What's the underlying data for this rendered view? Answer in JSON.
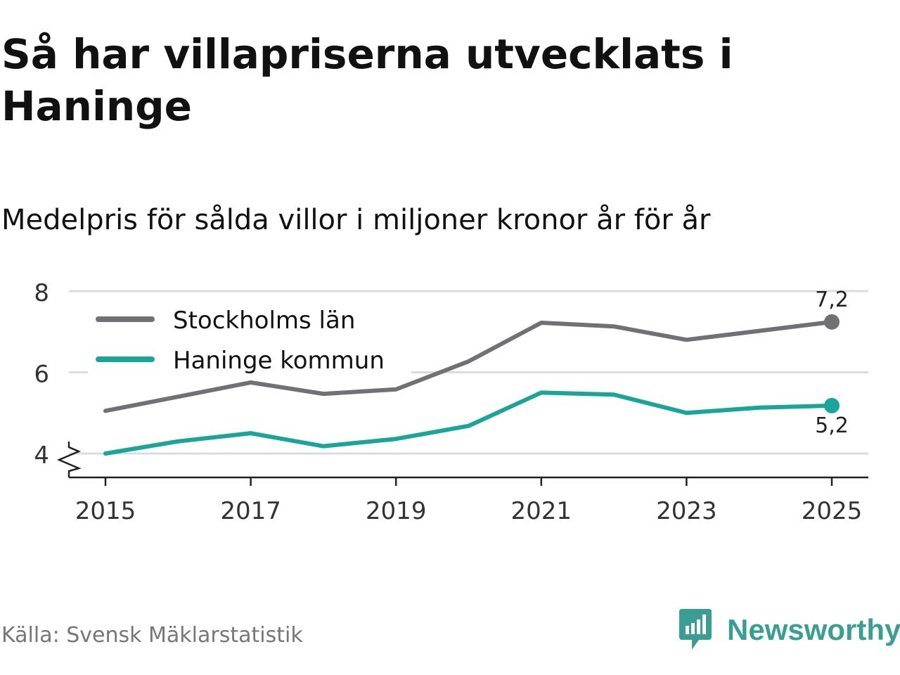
{
  "title": "Så har villapriserna utvecklats i Haninge",
  "subtitle": "Medelpris för sålda villor i miljoner kronor år för år",
  "source": "Källa: Svensk Mäklarstatistik",
  "brand": {
    "name": "Newsworthy",
    "color": "#3a9e94",
    "icon": "newsworthy-logo-icon"
  },
  "chart_data": {
    "type": "line",
    "title": "Medelpris för sålda villor i miljoner kronor år för år",
    "xlabel": "",
    "ylabel": "",
    "x": [
      2015,
      2016,
      2017,
      2018,
      2019,
      2020,
      2021,
      2022,
      2023,
      2024,
      2025
    ],
    "x_ticks": [
      "2015",
      "2017",
      "2019",
      "2021",
      "2023",
      "2025"
    ],
    "y_ticks": [
      "4",
      "6",
      "8"
    ],
    "ylim": [
      3.4,
      8
    ],
    "y_axis_break": true,
    "grid": true,
    "legend_position": "top-left",
    "series": [
      {
        "name": "Stockholms län",
        "color": "#707075",
        "values": [
          5.05,
          5.4,
          5.75,
          5.47,
          5.58,
          6.27,
          7.22,
          7.13,
          6.8,
          7.02,
          7.24
        ],
        "end_label": "7,2"
      },
      {
        "name": "Haninge kommun",
        "color": "#1aa59a",
        "values": [
          4.0,
          4.3,
          4.5,
          4.18,
          4.36,
          4.68,
          5.5,
          5.45,
          5.0,
          5.13,
          5.18
        ],
        "end_label": "5,2"
      }
    ]
  }
}
